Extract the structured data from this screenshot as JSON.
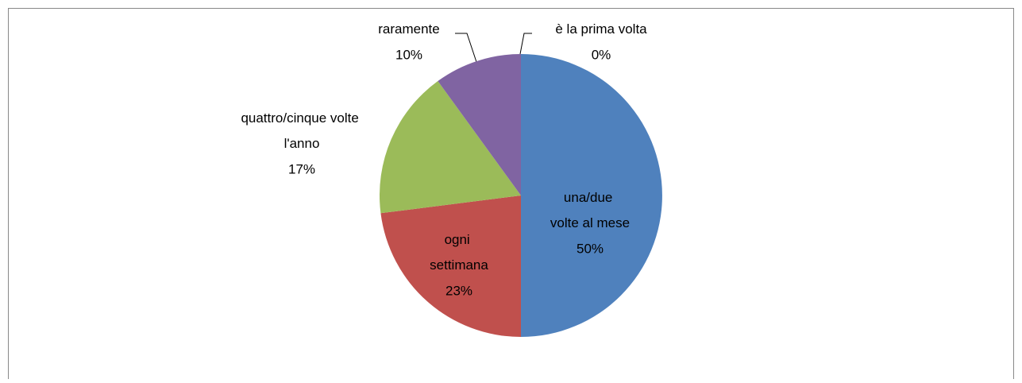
{
  "chart_data": {
    "type": "pie",
    "categories": [
      "una/due volte al mese",
      "ogni settimana",
      "quattro/cinque volte l'anno",
      "raramente",
      "è la prima volta"
    ],
    "values": [
      50,
      23,
      17,
      10,
      0
    ],
    "value_labels": [
      "50%",
      "23%",
      "17%",
      "10%",
      "0%"
    ],
    "colors": [
      "#4f81bd",
      "#c0504d",
      "#9bbb59",
      "#8064a2",
      "#4bacc6"
    ]
  }
}
